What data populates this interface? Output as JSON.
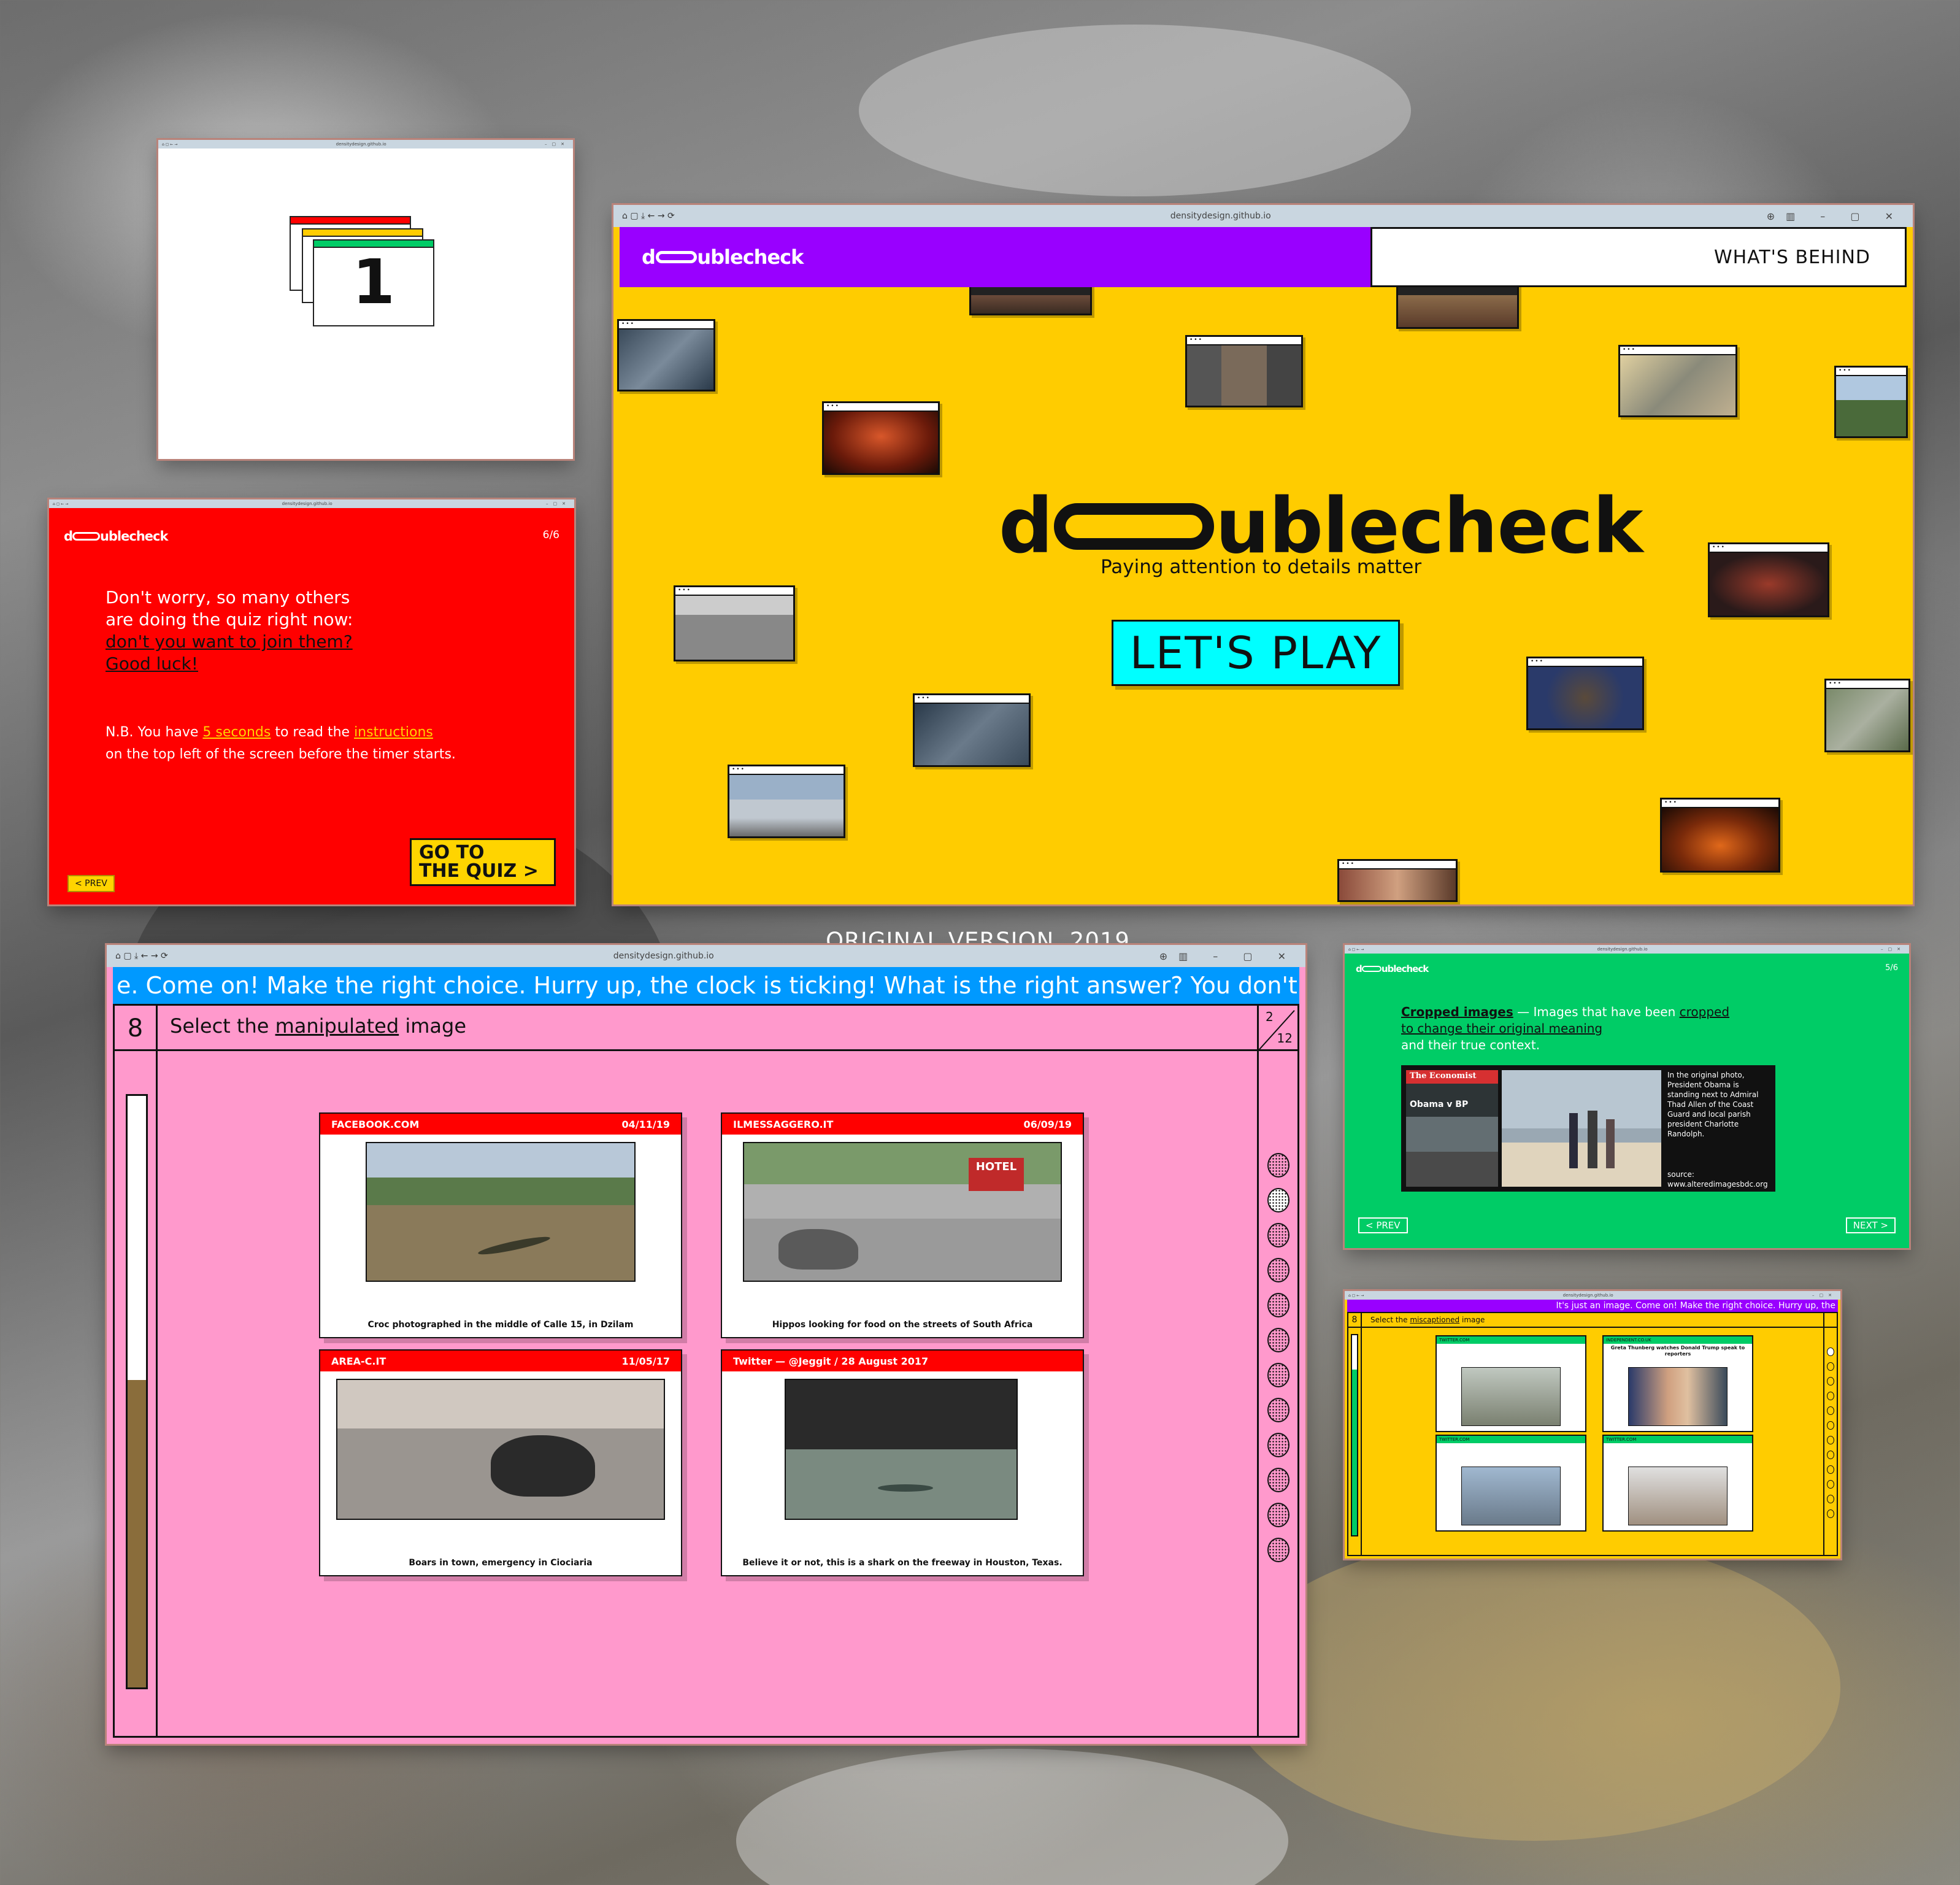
{
  "caption": "ORIGINAL VERSION, 2019",
  "browser": {
    "url": "densitydesign.github.io"
  },
  "counter_window": {
    "number": "1"
  },
  "red_window": {
    "logo": "doublecheck",
    "page": "6/6",
    "line1": "Don't worry, so many others",
    "line2": "are doing the quiz right now:",
    "link1": "don't you want to join them?",
    "link2": "Good luck!",
    "nb_pre": "N.B. You have ",
    "nb_seconds": "5 seconds",
    "nb_mid": " to read the ",
    "nb_instructions": "instructions",
    "nb_line2": "on the top left of the screen before the timer starts.",
    "prev": "< PREV",
    "goto_line1": "GO TO",
    "goto_line2": "THE QUIZ >"
  },
  "yellow_window": {
    "logo": "doublecheck",
    "whats_behind": "WHAT'S BEHIND",
    "big_logo": "doublecheck",
    "tagline": "Paying attention to details matter",
    "play_button": "LET'S PLAY"
  },
  "pink_window": {
    "marquee": "e. Come on!  Make the right choice.  Hurry up, the clock is ticking!  What is the right answer?  You don't wan",
    "timer": "8",
    "question_pre": "Select the ",
    "question_key": "manipulated",
    "question_post": " image",
    "page_current": "2",
    "page_total": "12",
    "timer_remaining_fraction": 0.52,
    "cards": [
      {
        "source": "FACEBOOK.COM",
        "date": "04/11/19",
        "caption": "Croc photographed in the middle of Calle 15, in Dzilam"
      },
      {
        "source": "ILMESSAGGERO.IT",
        "date": "06/09/19",
        "caption": "Hippos looking for food on the streets of South Africa"
      },
      {
        "source": "AREA-C.IT",
        "date": "11/05/17",
        "caption": "Boars in town, emergency in Ciociaria"
      },
      {
        "source": "Twitter — @Jeggit / 28 August 2017",
        "date": "",
        "caption": "Believe it or not, this is a shark on the freeway in Houston, Texas."
      }
    ]
  },
  "green_window": {
    "logo": "doublecheck",
    "page": "5/6",
    "term": "Cropped images",
    "desc1": " — Images that have been ",
    "desc_link1": "cropped",
    "desc_link2": "to change their original meaning",
    "desc3": "and their true context.",
    "magazine": "The Economist",
    "magazine_headline": "Obama v BP",
    "info": "In the original photo, President Obama is standing next to Admiral Thad Allen of the Coast Guard and local parish president Charlotte Randolph.",
    "source": "source: www.alteredimagesbdc.org",
    "prev": "< PREV",
    "next": "NEXT >"
  },
  "small_window": {
    "marquee": "It's just an image. Come on!  Make the right choice.  Hurry up, the",
    "timer": "8",
    "question_pre": "Select the ",
    "question_key": "miscaptioned",
    "question_post": " image",
    "cards": [
      {
        "source": "TWITTER.COM",
        "title": ""
      },
      {
        "source": "INDEPENDENT.CO.UK",
        "title": "Greta Thunberg watches Donald Trump speak to reporters"
      },
      {
        "source": "TWITTER.COM",
        "title": ""
      },
      {
        "source": "TWITTER.COM",
        "title": ""
      }
    ]
  },
  "colors": {
    "purple": "#9900ff",
    "yellow": "#ffcc00",
    "cyan": "#00ffff",
    "red": "#ff0000",
    "pink": "#ff99cc",
    "blue": "#0099ff",
    "green": "#00cc66"
  }
}
